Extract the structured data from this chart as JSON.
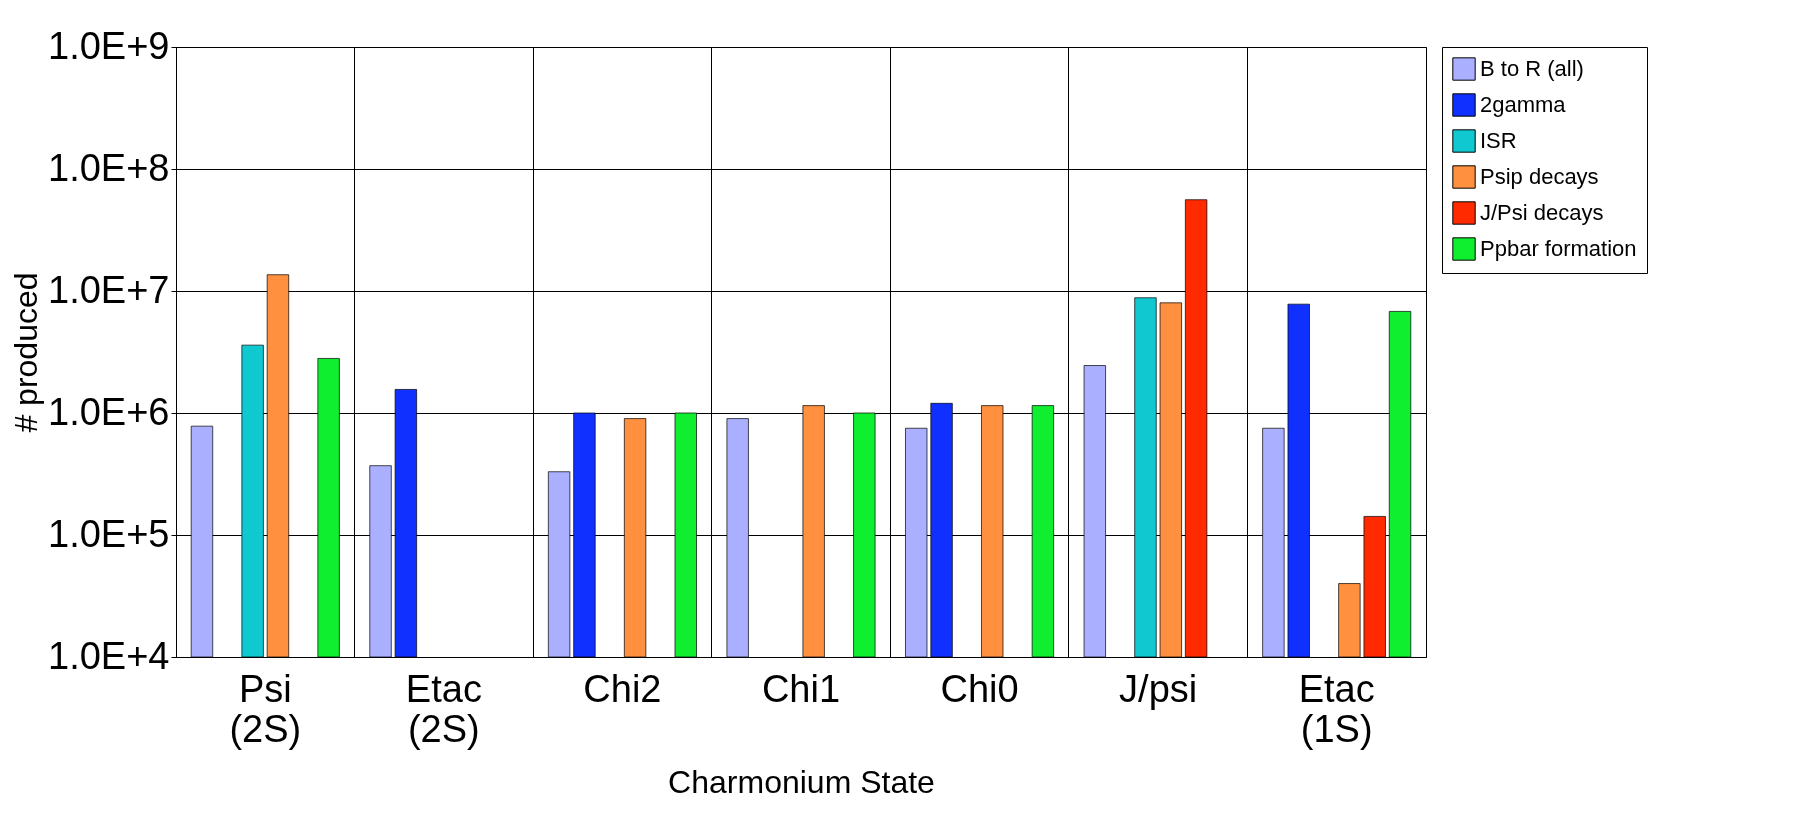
{
  "chart_data": {
    "type": "bar",
    "xlabel": "Charmonium State",
    "ylabel": "# produced",
    "categories": [
      "Psi (2S)",
      "Etac (2S)",
      "Chi2",
      "Chi1",
      "Chi0",
      "J/psi",
      "Etac (1S)"
    ],
    "series": [
      {
        "name": "B to R (all)",
        "color": "#aab0ff",
        "values": [
          780000,
          370000,
          330000,
          900000,
          750000,
          2450000,
          750000
        ]
      },
      {
        "name": "2gamma",
        "color": "#1030ff",
        "values": [
          null,
          1560000,
          1000000,
          null,
          1200000,
          null,
          7800000
        ]
      },
      {
        "name": "ISR",
        "color": "#10c8d0",
        "values": [
          3600000,
          null,
          null,
          null,
          null,
          8800000,
          null
        ]
      },
      {
        "name": "Psip decays",
        "color": "#ff9040",
        "values": [
          13600000,
          null,
          900000,
          1150000,
          1150000,
          8000000,
          40000
        ]
      },
      {
        "name": "J/Psi decays",
        "color": "#ff2a00",
        "values": [
          null,
          null,
          null,
          null,
          null,
          56000000,
          142000
        ]
      },
      {
        "name": "Ppbar formation",
        "color": "#10ee30",
        "values": [
          2800000,
          null,
          1000000,
          1000000,
          1150000,
          null,
          6800000
        ]
      }
    ],
    "log": true,
    "ylim": [
      10000,
      1000000000
    ],
    "yticks": [
      {
        "value": 10000,
        "label": "1.0E+4"
      },
      {
        "value": 100000,
        "label": "1.0E+5"
      },
      {
        "value": 1000000,
        "label": "1.0E+6"
      },
      {
        "value": 10000000,
        "label": "1.0E+7"
      },
      {
        "value": 100000000,
        "label": "1.0E+8"
      },
      {
        "value": 1000000000,
        "label": "1.0E+9"
      }
    ],
    "grid": true,
    "legend": "right"
  }
}
